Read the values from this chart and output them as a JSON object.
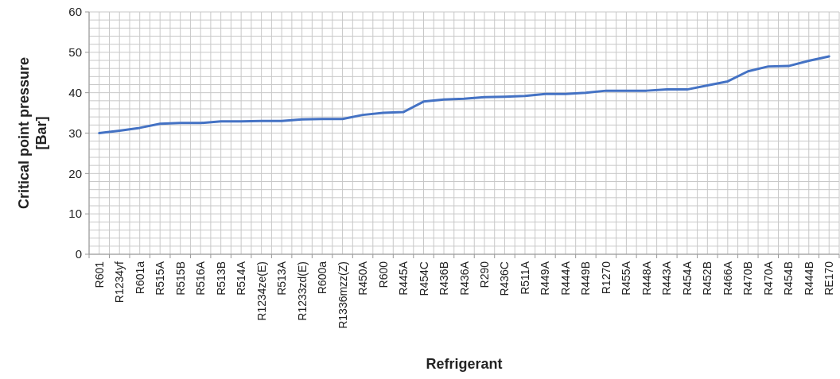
{
  "chart_data": {
    "type": "line",
    "xlabel": "Refrigerant",
    "ylabel": "Critical point pressure [Bar]",
    "categories": [
      "R601",
      "R1234yf",
      "R601a",
      "R515A",
      "R515B",
      "R516A",
      "R513B",
      "R514A",
      "R1234ze(E)",
      "R513A",
      "R1233zd(E)",
      "R600a",
      "R1336mzz(Z)",
      "R450A",
      "R600",
      "R445A",
      "R454C",
      "R436B",
      "R436A",
      "R290",
      "R436C",
      "R511A",
      "R449A",
      "R444A",
      "R449B",
      "R1270",
      "R455A",
      "R448A",
      "R443A",
      "R454A",
      "R452B",
      "R466A",
      "R470B",
      "R470A",
      "R454B",
      "R444B",
      "RE170"
    ],
    "series": [
      {
        "color": "#4472c4",
        "values": [
          30.0,
          30.6,
          31.3,
          32.3,
          32.5,
          32.5,
          32.9,
          32.9,
          33.0,
          33.0,
          33.4,
          33.5,
          33.5,
          34.5,
          35.0,
          35.2,
          37.8,
          38.3,
          38.5,
          38.9,
          39.0,
          39.2,
          39.7,
          39.7,
          40.0,
          40.5,
          40.5,
          40.5,
          40.8,
          40.8,
          41.8,
          42.8,
          45.3,
          46.5,
          46.6,
          47.9,
          49.0
        ]
      }
    ],
    "ylim": [
      0,
      60
    ],
    "yticks": [
      0,
      10,
      20,
      30,
      40,
      50,
      60
    ],
    "grid": true,
    "marker": "none",
    "line_style": "solid"
  }
}
